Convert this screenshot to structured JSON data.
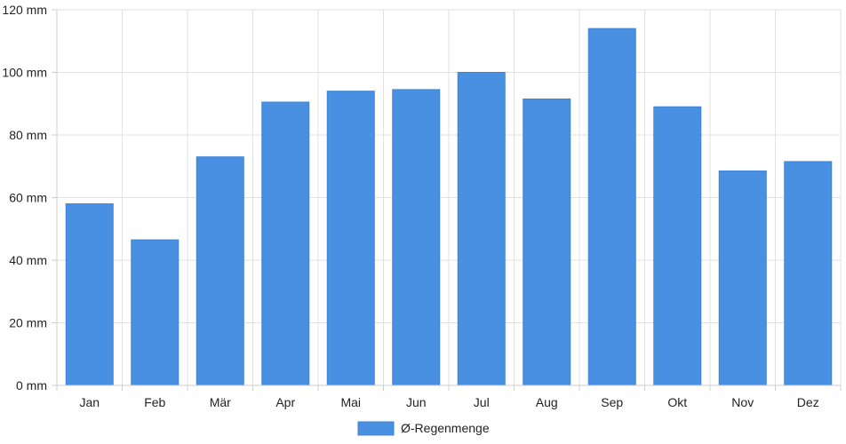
{
  "chart_data": {
    "type": "bar",
    "categories": [
      "Jan",
      "Feb",
      "Mär",
      "Apr",
      "Mai",
      "Jun",
      "Jul",
      "Aug",
      "Sep",
      "Okt",
      "Nov",
      "Dez"
    ],
    "series": [
      {
        "name": "Ø-Regenmenge",
        "values": [
          58,
          46.5,
          73,
          90.5,
          94,
          94.5,
          100,
          91.5,
          114,
          89,
          68.5,
          71.5
        ],
        "color": "#4a90e2"
      }
    ],
    "y_ticks": [
      "0 mm",
      "20 mm",
      "40 mm",
      "60 mm",
      "80 mm",
      "100 mm",
      "120 mm"
    ],
    "ylim": [
      0,
      120
    ],
    "y_step": 20,
    "y_unit": "mm",
    "grid": true,
    "legend_position": "bottom-center"
  }
}
